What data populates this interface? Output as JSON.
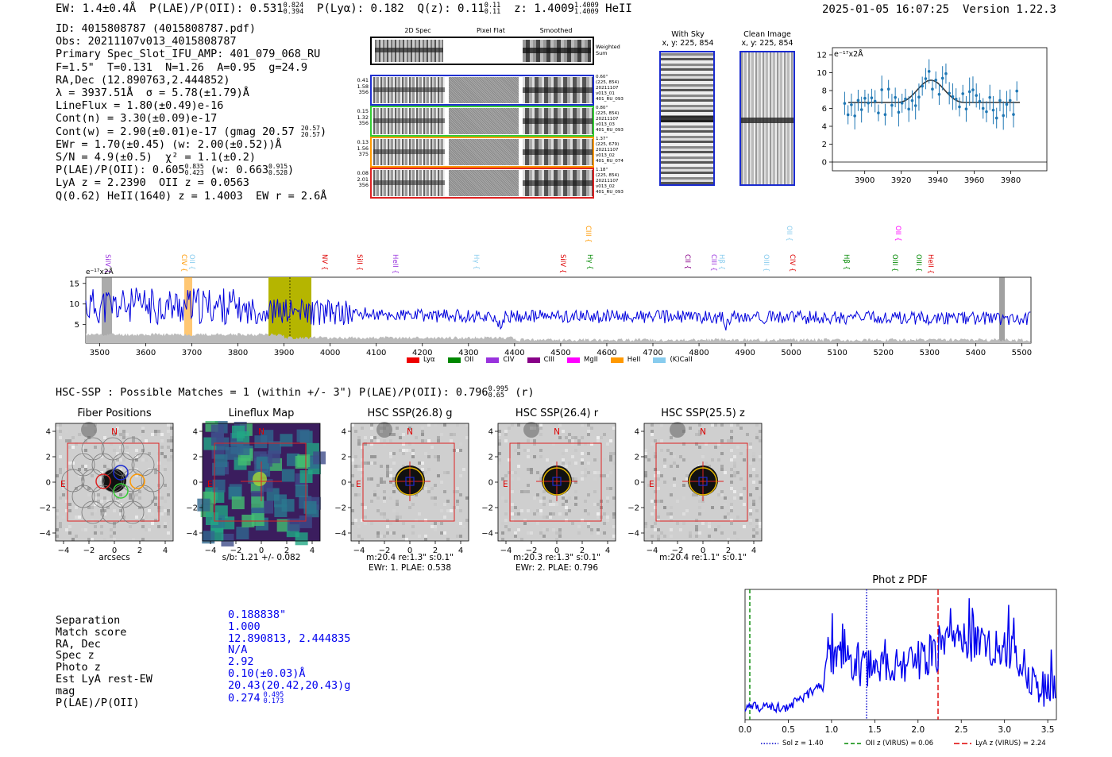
{
  "header": {
    "ew": "EW: 1.4±0.4Å",
    "plae_label": "P(LAE)/P(OII): 0.531",
    "plae_hi": "0.824",
    "plae_lo": "0.394",
    "plya": "P(Lyα): 0.182",
    "q_label": "Q(z): 0.11",
    "q_hi": "0.11",
    "q_lo": "0.11",
    "z_label": "z: 1.4009",
    "z_hi": "1.4009",
    "z_lo": "1.4009",
    "z_line": "HeII",
    "timestamp": "2025-01-05 16:07:25",
    "version": "Version 1.22.3"
  },
  "info": {
    "id": "ID: 4015808787 (4015808787.pdf)",
    "obs": "Obs: 20211107v013_4015808787",
    "primary": "Primary Spec_Slot_IFU_AMP: 401_079_068_RU",
    "fiber": "F=1.5\"  T=0.131  N=1.26  A=0.95  g=24.9",
    "radec": "RA,Dec (12.890763,2.444852)",
    "lambda": "λ = 3937.51Å  σ = 5.78(±1.79)Å",
    "lineflux": "LineFlux = 1.80(±0.49)e-16",
    "contn": "Cont(n) = 3.30(±0.09)e-17",
    "contw": "Cont(w) = 2.90(±0.01)e-17 (gmag 20.57",
    "contw_hi": "20.57",
    "contw_lo": "20.57",
    "contw_end": ")",
    "ewr": "EWr = 1.70(±0.45) (w: 2.00(±0.52))Å",
    "sn": "S/N = 4.9(±0.5)  χ² = 1.1(±0.2)",
    "plae": "P(LAE)/P(OII): 0.605",
    "plae_hi": "0.835",
    "plae_lo": "0.423",
    "plae_w": "(w: 0.663",
    "plae_w_hi": "0.915",
    "plae_w_lo": "0.528",
    "plae_w_end": ")",
    "lya": "LyA z = 2.2390  OII z = 0.0563",
    "heii": "Q(0.62) HeII(1640) z = 1.4003  EW r = 2.6Å"
  },
  "spec2d": {
    "col_labels": [
      "2D Spec",
      "Pixel Flat",
      "Smoothed"
    ],
    "weighted_label": "Weighted Sum",
    "rows": [
      {
        "vals": [
          "0.41",
          "1.58",
          "356"
        ],
        "color": "#1f2fd0",
        "info": [
          "0.60\"",
          "(225, 854)",
          "20211107",
          "v013_01",
          "401_RU_093"
        ]
      },
      {
        "vals": [
          "0.15",
          "1.32",
          "356"
        ],
        "color": "#33cc33",
        "info": [
          "0.80\"",
          "(225, 854)",
          "20211107",
          "v013_03",
          "401_RU_093"
        ]
      },
      {
        "vals": [
          "0.13",
          "1.56",
          "375"
        ],
        "color": "#ff9900",
        "info": [
          "1.37\"",
          "(225, 679)",
          "20211107",
          "v013_02",
          "401_RU_074"
        ]
      },
      {
        "vals": [
          "0.08",
          "2.01",
          "356"
        ],
        "color": "#dd2222",
        "info": [
          "1.18\"",
          "(225, 854)",
          "20211107",
          "v013_02",
          "401_RU_093"
        ]
      }
    ]
  },
  "cutouts": {
    "with_sky": "With Sky",
    "with_sky_xy": "x, y: 225, 854",
    "clean": "Clean Image",
    "clean_xy": "x, y: 225, 854"
  },
  "zoom_spectrum": {
    "unit": "e⁻¹⁷x2Å",
    "y_ticks": [
      "12",
      "10",
      "8",
      "6",
      "4",
      "2",
      "0"
    ],
    "x_ticks": [
      "3900",
      "3920",
      "3940",
      "3960",
      "3980"
    ]
  },
  "full_spectrum": {
    "unit": "e⁻¹⁷x2Å",
    "y_ticks": [
      "15",
      "10",
      "5"
    ],
    "x_ticks": [
      "3500",
      "3600",
      "3700",
      "3800",
      "3900",
      "4000",
      "4100",
      "4200",
      "4300",
      "4400",
      "4500",
      "4600",
      "4700",
      "4800",
      "4900",
      "5000",
      "5100",
      "5200",
      "5300",
      "5400",
      "5500"
    ],
    "lines": [
      {
        "label": "SiIV",
        "color": "#9933dd"
      },
      {
        "label": "CIV",
        "color": "#ff9900"
      },
      {
        "label": "OII",
        "color": "#88ccee"
      },
      {
        "label": "NV",
        "color": "#dd0000"
      },
      {
        "label": "SiII",
        "color": "#dd0000"
      },
      {
        "label": "HeII",
        "color": "#9933dd"
      },
      {
        "label": "Hγ",
        "color": "#88ccee"
      },
      {
        "label": "SiIV",
        "color": "#dd0000"
      },
      {
        "label": "CIII",
        "color": "#ff9900"
      },
      {
        "label": "Hγ",
        "color": "#008800"
      },
      {
        "label": "CII",
        "color": "#880088"
      },
      {
        "label": "CIII",
        "color": "#9933dd"
      },
      {
        "label": "Hβ",
        "color": "#88ccee"
      },
      {
        "label": "OIII",
        "color": "#88ccee"
      },
      {
        "label": "CIV",
        "color": "#dd0000"
      },
      {
        "label": "OII",
        "color": "#88ccee"
      },
      {
        "label": "Hβ",
        "color": "#008800"
      },
      {
        "label": "OIII",
        "color": "#008800"
      },
      {
        "label": "OII",
        "color": "#ff00ff"
      },
      {
        "label": "OIII",
        "color": "#008800"
      },
      {
        "label": "HeII",
        "color": "#dd0000"
      }
    ],
    "legend": [
      {
        "label": "Lyα",
        "color": "#ee0000"
      },
      {
        "label": "OII",
        "color": "#008800"
      },
      {
        "label": "CIV",
        "color": "#9933dd"
      },
      {
        "label": "CIII",
        "color": "#880088"
      },
      {
        "label": "MgII",
        "color": "#ff00ff"
      },
      {
        "label": "HeII",
        "color": "#ff9900"
      },
      {
        "label": "(K)CaII",
        "color": "#88ccee"
      }
    ]
  },
  "hsc": {
    "title": "HSC-SSP : Possible Matches = 1 (within +/- 3\")  P(LAE)/P(OII): 0.796",
    "title_hi": "0.995",
    "title_lo": "0.65",
    "title_end": "(r)",
    "panels": [
      {
        "title": "Fiber Positions",
        "sub1": "arcsecs",
        "sub2": ""
      },
      {
        "title": "Lineflux Map",
        "sub1": "s/b: 1.21 +/- 0.082",
        "sub2": ""
      },
      {
        "title": "HSC SSP(26.8) g",
        "sub1": "m:20.4  re:1.3\"  s:0.1\"",
        "sub2": "EWr: 1. PLAE: 0.538"
      },
      {
        "title": "HSC SSP(26.4) r",
        "sub1": "m:20.3  re:1.3\"  s:0.1\"",
        "sub2": "EWr: 2. PLAE: 0.796"
      },
      {
        "title": "HSC SSP(25.5) z",
        "sub1": "m:20.4  re:1.1\"  s:0.1\"",
        "sub2": ""
      }
    ],
    "ticks": [
      "4",
      "2",
      "0",
      "−2",
      "−4"
    ],
    "xticks": [
      "−4",
      "−2",
      "0",
      "2",
      "4"
    ],
    "n_label": "N",
    "e_label": "E"
  },
  "match": {
    "labels": [
      "Separation",
      "Match score",
      "RA, Dec",
      "Spec z",
      "Photo z",
      "Est LyA rest-EW",
      "mag",
      "P(LAE)/P(OII)"
    ],
    "values": [
      "0.188838\"",
      "1.000",
      "12.890813, 2.444835",
      "N/A",
      "2.92",
      "0.10(±0.03)Å",
      "20.43(20.42,20.43)g",
      "0.274"
    ],
    "plae_hi": "0.495",
    "plae_lo": "0.173"
  },
  "photz": {
    "title": "Phot z PDF",
    "x_ticks": [
      "0.0",
      "0.5",
      "1.0",
      "1.5",
      "2.0",
      "2.5",
      "3.0",
      "3.5"
    ],
    "legend": [
      {
        "label": "Sol z = 1.40",
        "color": "#0000cc"
      },
      {
        "label": "OII z (VIRUS) = 0.06",
        "color": "#008800"
      },
      {
        "label": "LyA z (VIRUS) = 2.24",
        "color": "#dd0000"
      }
    ]
  }
}
